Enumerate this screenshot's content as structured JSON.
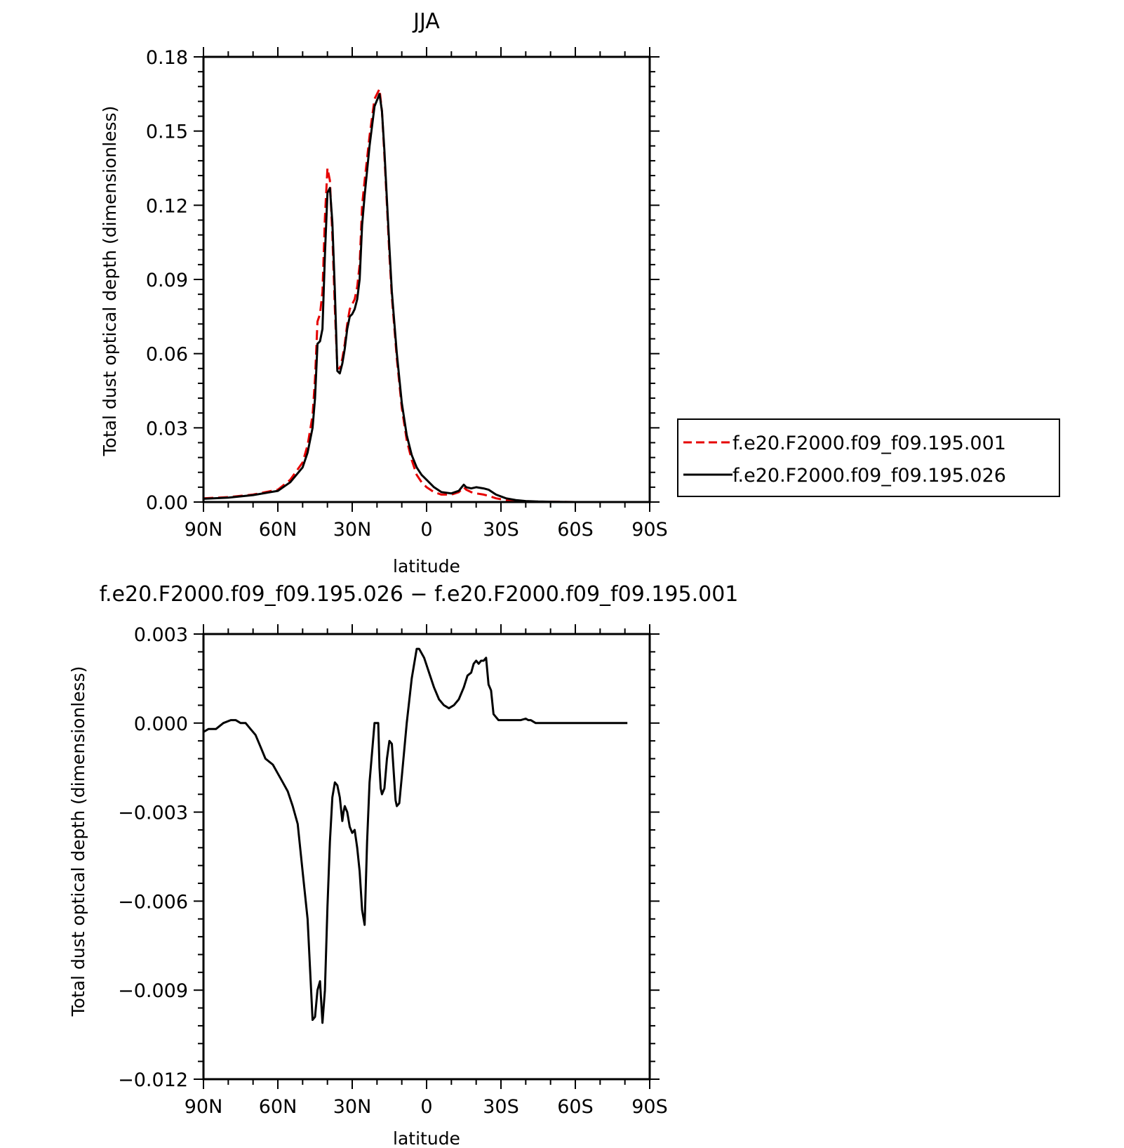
{
  "colors": {
    "axis": "#000000",
    "series_dashed": "#e60000",
    "series_solid": "#000000",
    "background": "#ffffff"
  },
  "chart_data": [
    {
      "type": "line",
      "title": "JJA",
      "xlabel": "latitude",
      "ylabel": "Total dust optical depth (dimensionless)",
      "xlim": [
        90,
        -90
      ],
      "ylim": [
        0,
        0.18
      ],
      "xticks": [
        90,
        60,
        30,
        0,
        -30,
        -60,
        -90
      ],
      "xtick_labels": [
        "90N",
        "60N",
        "30N",
        "0",
        "30S",
        "60S",
        "90S"
      ],
      "yticks": [
        0,
        0.03,
        0.06,
        0.09,
        0.12,
        0.15,
        0.18
      ],
      "ytick_labels": [
        "0.00",
        "0.03",
        "0.06",
        "0.09",
        "0.12",
        "0.15",
        "0.18"
      ],
      "legend_position": "right",
      "series": [
        {
          "name": "f.e20.F2000.f09_f09.195.001",
          "style": "dashed",
          "color": "#e60000",
          "x": [
            90,
            80,
            70,
            60,
            55,
            50,
            48,
            46,
            45,
            44,
            43,
            42,
            41,
            40,
            39,
            38,
            37,
            36,
            35,
            34,
            33,
            32,
            31,
            30,
            29,
            28,
            27,
            26,
            25,
            23,
            21,
            19,
            18,
            17,
            16,
            15,
            14,
            12,
            10,
            8,
            6,
            4,
            2,
            0,
            -3,
            -6,
            -10,
            -13,
            -15,
            -16,
            -18,
            -20,
            -23,
            -25,
            -28,
            -32,
            -36,
            -40,
            -45,
            -50,
            -60,
            -70,
            -80,
            -90
          ],
          "y": [
            0.0015,
            0.002,
            0.003,
            0.005,
            0.009,
            0.016,
            0.023,
            0.035,
            0.05,
            0.073,
            0.076,
            0.085,
            0.115,
            0.135,
            0.13,
            0.108,
            0.078,
            0.054,
            0.054,
            0.058,
            0.064,
            0.072,
            0.078,
            0.08,
            0.082,
            0.087,
            0.096,
            0.12,
            0.13,
            0.148,
            0.163,
            0.167,
            0.158,
            0.14,
            0.12,
            0.1,
            0.083,
            0.058,
            0.038,
            0.025,
            0.017,
            0.011,
            0.008,
            0.006,
            0.004,
            0.003,
            0.003,
            0.004,
            0.006,
            0.005,
            0.004,
            0.0035,
            0.003,
            0.0025,
            0.0015,
            0.0008,
            0.0004,
            0.0002,
            0.0001,
            0.0001,
            0.0,
            0.0,
            0.0,
            0.0
          ]
        },
        {
          "name": "f.e20.F2000.f09_f09.195.026",
          "style": "solid",
          "color": "#000000",
          "x": [
            90,
            80,
            70,
            60,
            55,
            50,
            48,
            46,
            45,
            44,
            43,
            42,
            41,
            40,
            39,
            38,
            37,
            36,
            35,
            34,
            33,
            32,
            31,
            30,
            29,
            28,
            27,
            26,
            25,
            23,
            21,
            19,
            18,
            17,
            16,
            15,
            14,
            12,
            10,
            8,
            6,
            4,
            2,
            0,
            -3,
            -6,
            -10,
            -13,
            -15,
            -16,
            -18,
            -20,
            -23,
            -25,
            -28,
            -32,
            -36,
            -40,
            -45,
            -50,
            -60,
            -70,
            -80,
            -90
          ],
          "y": [
            0.0013,
            0.0018,
            0.0028,
            0.0045,
            0.008,
            0.014,
            0.02,
            0.03,
            0.042,
            0.064,
            0.065,
            0.07,
            0.1,
            0.125,
            0.127,
            0.113,
            0.085,
            0.053,
            0.052,
            0.056,
            0.062,
            0.07,
            0.075,
            0.076,
            0.078,
            0.082,
            0.09,
            0.112,
            0.124,
            0.144,
            0.16,
            0.165,
            0.158,
            0.142,
            0.122,
            0.103,
            0.085,
            0.06,
            0.04,
            0.027,
            0.019,
            0.014,
            0.011,
            0.009,
            0.006,
            0.004,
            0.0035,
            0.0045,
            0.007,
            0.006,
            0.0055,
            0.006,
            0.0055,
            0.005,
            0.003,
            0.0015,
            0.0008,
            0.0004,
            0.0002,
            0.0001,
            0.0,
            0.0,
            0.0,
            0.0
          ]
        }
      ]
    },
    {
      "type": "line",
      "title": "f.e20.F2000.f09_f09.195.026 − f.e20.F2000.f09_f09.195.001",
      "xlabel": "latitude",
      "ylabel": "Total dust optical depth (dimensionless)",
      "xlim": [
        90,
        -90
      ],
      "ylim": [
        -0.012,
        0.003
      ],
      "xticks": [
        90,
        60,
        30,
        0,
        -30,
        -60,
        -90
      ],
      "xtick_labels": [
        "90N",
        "60N",
        "30N",
        "0",
        "30S",
        "60S",
        "90S"
      ],
      "yticks": [
        -0.012,
        -0.009,
        -0.006,
        -0.003,
        0.0,
        0.003
      ],
      "ytick_labels": [
        "−0.012",
        "−0.009",
        "−0.006",
        "−0.003",
        "0.000",
        "0.003"
      ],
      "series": [
        {
          "style": "solid",
          "color": "#000000",
          "x": [
            90,
            88,
            85,
            82,
            79,
            77,
            75,
            73,
            71,
            69,
            67,
            65,
            62,
            60,
            58,
            56,
            54,
            52,
            50,
            48,
            46,
            45,
            44,
            43,
            42,
            41,
            40,
            39,
            38,
            37,
            36,
            35,
            34,
            33.5,
            33,
            32,
            31,
            30,
            29,
            28,
            27,
            26,
            25,
            24,
            23,
            21,
            19.5,
            19,
            18.5,
            18,
            17,
            16,
            15,
            14,
            12.5,
            12,
            11,
            10,
            8,
            6,
            4,
            3,
            1,
            -1,
            -3,
            -5,
            -7,
            -9,
            -11,
            -13,
            -15,
            -16.5,
            -18,
            -19,
            -20,
            -21,
            -22,
            -23,
            -24,
            -25,
            -26,
            -27,
            -28,
            -29,
            -30,
            -32,
            -34,
            -36,
            -38,
            -40,
            -41,
            -42,
            -44,
            -46,
            -48,
            -50,
            -55,
            -60,
            -65,
            -70,
            -75,
            -78,
            -81
          ],
          "y": [
            -0.0003,
            -0.0002,
            -0.0002,
            0.0,
            0.0001,
            0.0001,
            0.0,
            0.0,
            -0.0002,
            -0.0004,
            -0.0008,
            -0.0012,
            -0.0014,
            -0.0017,
            -0.002,
            -0.0023,
            -0.0028,
            -0.0034,
            -0.005,
            -0.0066,
            -0.01,
            -0.0099,
            -0.009,
            -0.0087,
            -0.0101,
            -0.009,
            -0.0062,
            -0.004,
            -0.0025,
            -0.002,
            -0.0021,
            -0.0025,
            -0.0033,
            -0.003,
            -0.0028,
            -0.003,
            -0.0035,
            -0.0037,
            -0.0036,
            -0.0042,
            -0.005,
            -0.0063,
            -0.0068,
            -0.004,
            -0.002,
            0.0,
            0.0,
            -0.0015,
            -0.0022,
            -0.0024,
            -0.0022,
            -0.0012,
            -0.0006,
            -0.0007,
            -0.0026,
            -0.0028,
            -0.0027,
            -0.0018,
            0.0,
            0.0015,
            0.0025,
            0.0025,
            0.0022,
            0.0017,
            0.0012,
            0.0008,
            0.0006,
            0.0005,
            0.0006,
            0.0008,
            0.0012,
            0.0016,
            0.0017,
            0.002,
            0.0021,
            0.002,
            0.0021,
            0.0021,
            0.0022,
            0.0013,
            0.0011,
            0.0003,
            0.0002,
            0.0001,
            0.0001,
            0.0001,
            0.0001,
            0.0001,
            0.0001,
            0.00015,
            0.0001,
            0.0001,
            0.0,
            0.0,
            0.0,
            0.0,
            0.0,
            0.0,
            0.0,
            0.0,
            0.0,
            0.0,
            0.0
          ]
        }
      ]
    }
  ]
}
